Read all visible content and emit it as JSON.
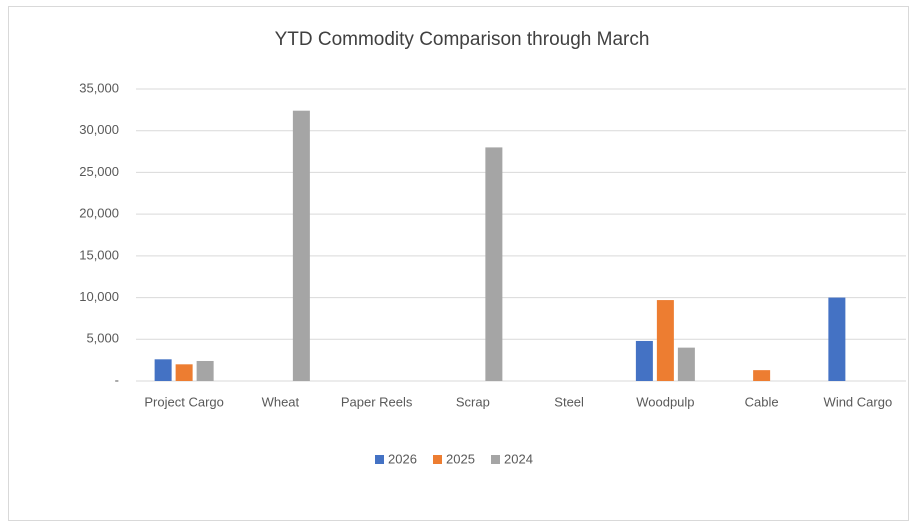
{
  "chart_data": {
    "type": "bar",
    "title": "YTD Commodity Comparison through March",
    "categories": [
      "Project Cargo",
      "Wheat",
      "Paper Reels",
      "Scrap",
      "Steel",
      "Woodpulp",
      "Cable",
      "Wind Cargo"
    ],
    "series": [
      {
        "name": "2026",
        "color": "#4472c4",
        "values": [
          2600,
          0,
          0,
          0,
          0,
          4800,
          0,
          10000
        ]
      },
      {
        "name": "2025",
        "color": "#ed7d31",
        "values": [
          2000,
          0,
          0,
          0,
          0,
          9700,
          1300,
          0
        ]
      },
      {
        "name": "2024",
        "color": "#a5a5a5",
        "values": [
          2400,
          32400,
          0,
          28000,
          0,
          4000,
          0,
          0
        ]
      }
    ],
    "ylim": [
      0,
      35000
    ],
    "yticks": [
      {
        "value": 0,
        "label": "-"
      },
      {
        "value": 5000,
        "label": "5,000"
      },
      {
        "value": 10000,
        "label": "10,000"
      },
      {
        "value": 15000,
        "label": "15,000"
      },
      {
        "value": 20000,
        "label": "20,000"
      },
      {
        "value": 25000,
        "label": "25,000"
      },
      {
        "value": 30000,
        "label": "30,000"
      },
      {
        "value": 35000,
        "label": "35,000"
      }
    ],
    "grid": true,
    "legend": "bottom"
  }
}
